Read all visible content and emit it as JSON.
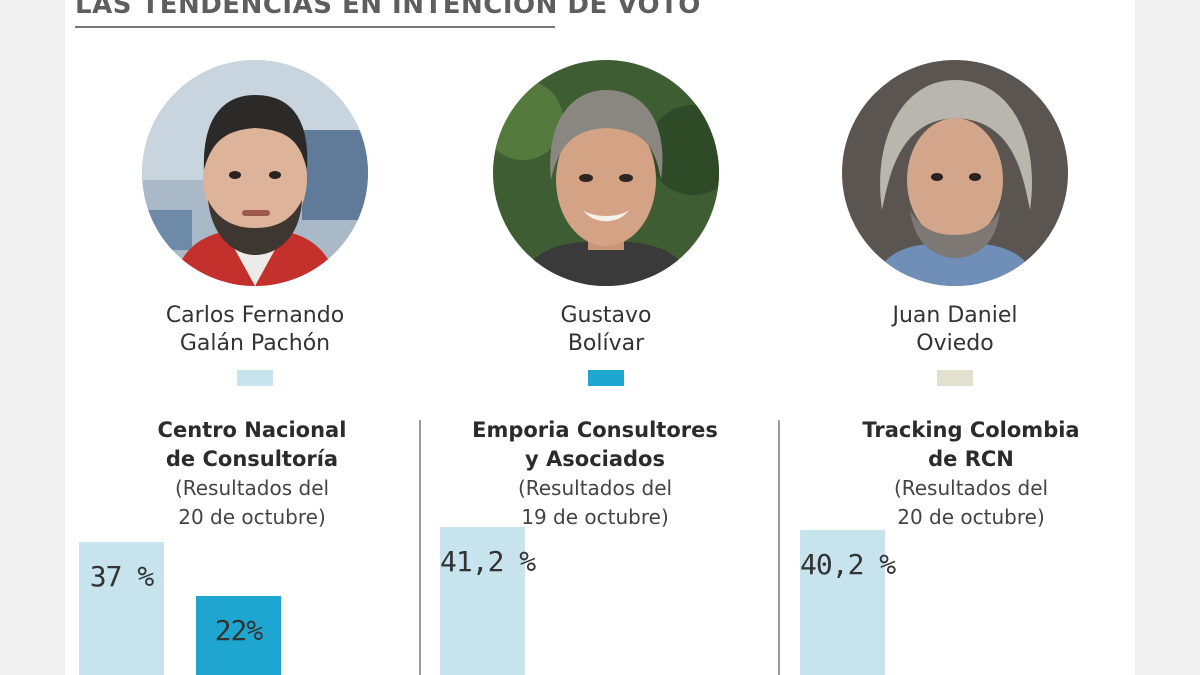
{
  "heading": "LAS TENDENCIAS EN INTENCIÓN DE VOTO",
  "colors": {
    "galan": "#c6e3ee",
    "bolivar": "#1ea6d0",
    "oviedo": "#e2e0cf",
    "divider": "#9a9a9a"
  },
  "candidates": [
    {
      "name_line1": "Carlos Fernando",
      "name_line2": "Galán Pachón",
      "color": "#c6e3ee"
    },
    {
      "name_line1": "Gustavo",
      "name_line2": "Bolívar",
      "color": "#1ea6d0"
    },
    {
      "name_line1": "Juan Daniel",
      "name_line2": "Oviedo",
      "color": "#e2e0cf"
    }
  ],
  "pollsters": [
    {
      "name_line1": "Centro Nacional",
      "name_line2": "de Consultoría",
      "date_line1": "(Resultados del",
      "date_line2": "20 de octubre)"
    },
    {
      "name_line1": "Emporia Consultores",
      "name_line2": "y Asociados",
      "date_line1": "(Resultados del",
      "date_line2": "19 de octubre)"
    },
    {
      "name_line1": "Tracking Colombia",
      "name_line2": "de RCN",
      "date_line1": "(Resultados del",
      "date_line2": "20 de octubre)"
    }
  ],
  "chart_data": {
    "type": "bar",
    "title": "LAS TENDENCIAS EN INTENCIÓN DE VOTO",
    "categories": [
      "Centro Nacional de Consultoría",
      "Emporia Consultores y Asociados",
      "Tracking Colombia de RCN"
    ],
    "series": [
      {
        "name": "Carlos Fernando Galán Pachón",
        "values": [
          37,
          41.2,
          40.2
        ],
        "labels": [
          "37 %",
          "41,2 %",
          "40,2 %"
        ]
      },
      {
        "name": "Gustavo Bolívar",
        "values": [
          22,
          null,
          null
        ],
        "labels": [
          "22%",
          "",
          ""
        ]
      }
    ],
    "xlabel": "",
    "ylabel": ""
  }
}
